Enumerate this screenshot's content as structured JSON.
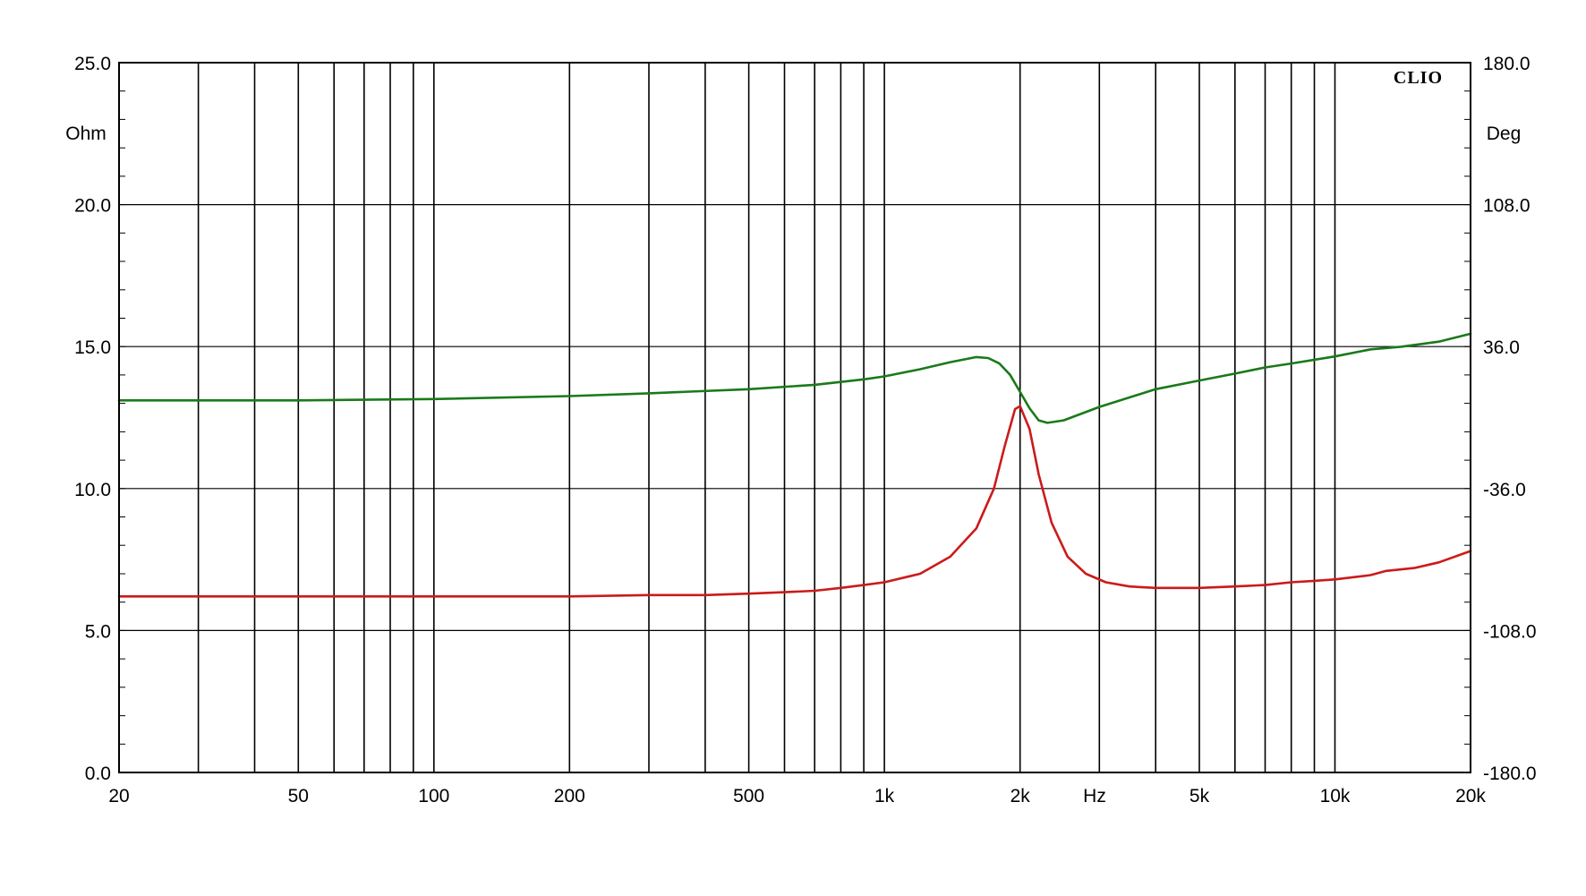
{
  "chart_data": {
    "type": "line",
    "watermark": "CLIO",
    "x_axis": {
      "unit_label": "Hz",
      "scale": "log",
      "range": [
        20,
        20000
      ],
      "tick_values": [
        20,
        50,
        100,
        200,
        500,
        1000,
        2000,
        5000,
        10000,
        20000
      ],
      "tick_labels": [
        "20",
        "50",
        "100",
        "200",
        "500",
        "1k",
        "2k",
        "5k",
        "10k",
        "20k"
      ]
    },
    "y_left": {
      "unit_label": "Ohm",
      "range": [
        0,
        25
      ],
      "tick_values": [
        0,
        5,
        10,
        15,
        20,
        25
      ],
      "tick_labels": [
        "0.0",
        "5.0",
        "10.0",
        "15.0",
        "20.0",
        "25.0"
      ]
    },
    "y_right": {
      "unit_label": "Deg",
      "range": [
        -180,
        180
      ],
      "tick_values": [
        -180,
        -108,
        -36,
        36,
        108,
        180
      ],
      "tick_labels": [
        "-180.0",
        "-108.0",
        "-36.0",
        "36.0",
        "108.0",
        "180.0"
      ]
    },
    "grid": true,
    "series": [
      {
        "axis": "left",
        "color": "#cc1a1a",
        "points": [
          [
            20,
            6.2
          ],
          [
            50,
            6.2
          ],
          [
            100,
            6.2
          ],
          [
            200,
            6.2
          ],
          [
            300,
            6.25
          ],
          [
            400,
            6.25
          ],
          [
            500,
            6.3
          ],
          [
            600,
            6.35
          ],
          [
            700,
            6.4
          ],
          [
            800,
            6.5
          ],
          [
            900,
            6.6
          ],
          [
            1000,
            6.7
          ],
          [
            1200,
            7.0
          ],
          [
            1400,
            7.6
          ],
          [
            1600,
            8.6
          ],
          [
            1750,
            10.0
          ],
          [
            1850,
            11.5
          ],
          [
            1950,
            12.8
          ],
          [
            2000,
            12.9
          ],
          [
            2100,
            12.1
          ],
          [
            2200,
            10.5
          ],
          [
            2350,
            8.8
          ],
          [
            2550,
            7.6
          ],
          [
            2800,
            7.0
          ],
          [
            3100,
            6.7
          ],
          [
            3500,
            6.55
          ],
          [
            4000,
            6.5
          ],
          [
            4500,
            6.5
          ],
          [
            5000,
            6.5
          ],
          [
            6000,
            6.55
          ],
          [
            7000,
            6.6
          ],
          [
            8000,
            6.7
          ],
          [
            9000,
            6.75
          ],
          [
            10000,
            6.8
          ],
          [
            12000,
            6.95
          ],
          [
            13000,
            7.1
          ],
          [
            15000,
            7.2
          ],
          [
            17000,
            7.4
          ],
          [
            20000,
            7.8
          ]
        ]
      },
      {
        "axis": "right",
        "color": "#1a7a1a",
        "points": [
          [
            20,
            8.7
          ],
          [
            50,
            8.7
          ],
          [
            100,
            9.4
          ],
          [
            200,
            10.9
          ],
          [
            300,
            12.3
          ],
          [
            500,
            14.4
          ],
          [
            700,
            16.6
          ],
          [
            900,
            19.4
          ],
          [
            1000,
            20.9
          ],
          [
            1200,
            24.5
          ],
          [
            1400,
            28.1
          ],
          [
            1600,
            30.7
          ],
          [
            1700,
            30.2
          ],
          [
            1800,
            27.4
          ],
          [
            1900,
            21.7
          ],
          [
            2000,
            13.0
          ],
          [
            2100,
            4.7
          ],
          [
            2200,
            -1.4
          ],
          [
            2300,
            -2.7
          ],
          [
            2500,
            -1.4
          ],
          [
            3000,
            5.4
          ],
          [
            4000,
            14.4
          ],
          [
            5000,
            18.8
          ],
          [
            6000,
            22.3
          ],
          [
            7000,
            25.4
          ],
          [
            8000,
            27.4
          ],
          [
            10000,
            31.0
          ],
          [
            12000,
            34.6
          ],
          [
            14000,
            35.9
          ],
          [
            17000,
            38.5
          ],
          [
            20000,
            42.5
          ]
        ]
      }
    ]
  }
}
